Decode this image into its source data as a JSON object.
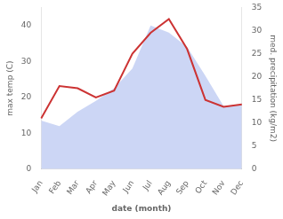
{
  "chart_data": {
    "type": "line",
    "xlabel": "date (month)",
    "ylabel": "max temp (C)",
    "y2label": "med. precipitation (kg/m2)",
    "categories": [
      "Jan",
      "Feb",
      "Mar",
      "Apr",
      "May",
      "Jun",
      "Jul",
      "Aug",
      "Sep",
      "Oct",
      "Nov",
      "Dec"
    ],
    "series": [
      {
        "type": "area",
        "color": "#aabbee",
        "values": [
          13.5,
          12.0,
          16.0,
          19.0,
          22.5,
          28.0,
          40.0,
          38.0,
          34.0,
          26.0,
          17.5,
          18.0
        ]
      },
      {
        "type": "line",
        "color": "#cc3333",
        "axis": "y2",
        "values": [
          11.0,
          18.0,
          17.5,
          15.5,
          17.0,
          25.0,
          29.5,
          32.5,
          26.0,
          15.0,
          13.5,
          14.0
        ]
      }
    ],
    "ylim": [
      0,
      45
    ],
    "yticks": [
      0,
      10,
      20,
      30,
      40
    ],
    "y2lim": [
      0,
      35
    ],
    "y2ticks": [
      0,
      5,
      10,
      15,
      20,
      25,
      30,
      35
    ],
    "grid": false
  }
}
